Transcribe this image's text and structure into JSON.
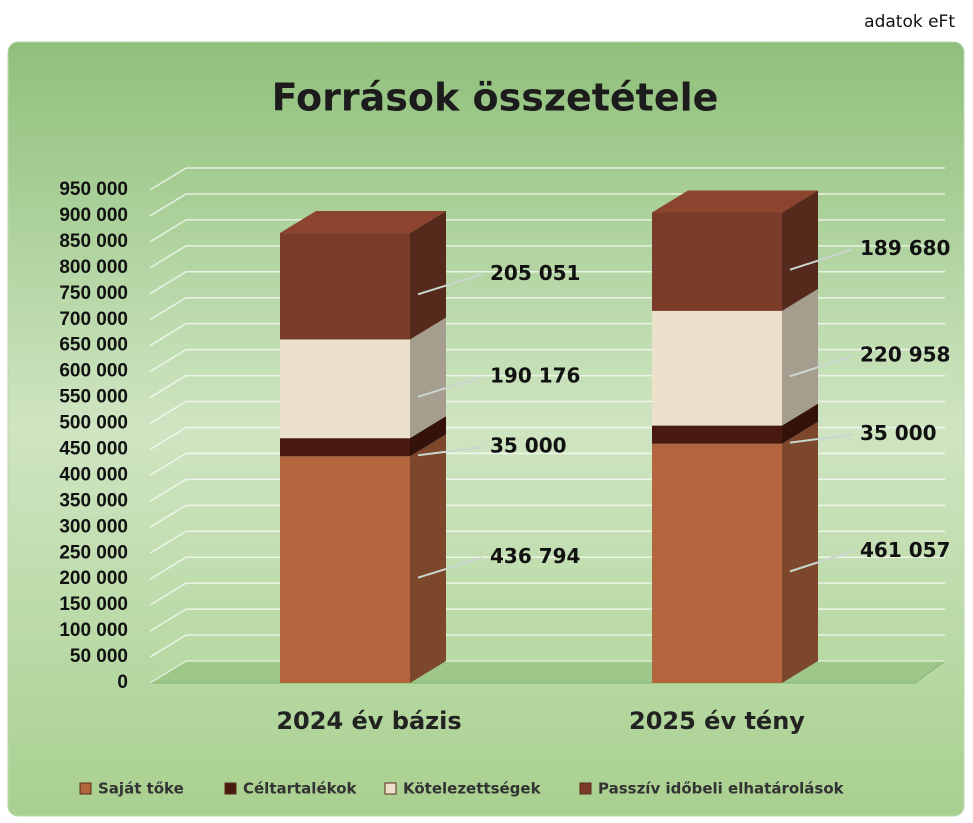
{
  "chart_data": {
    "type": "bar",
    "stacked": true,
    "title": "Források összetétele",
    "annotation": "adatok eFt",
    "categories": [
      "2024 év  bázis",
      "2025 év tény"
    ],
    "series": [
      {
        "name": "Saját tőke",
        "color": "#b3663e",
        "values": [
          436794,
          461057
        ],
        "value_labels": [
          "436 794",
          "461 057"
        ]
      },
      {
        "name": "Céltartalékok",
        "color": "#4a1a10",
        "values": [
          35000,
          35000
        ],
        "value_labels": [
          "35 000",
          "35 000"
        ]
      },
      {
        "name": "Kötelezettségek",
        "color": "#ece2cc",
        "values": [
          190176,
          220958
        ],
        "value_labels": [
          "190 176",
          "220 958"
        ]
      },
      {
        "name": "Passzív időbeli elhatárolások",
        "color": "#7b3b29",
        "values": [
          205051,
          189680
        ],
        "value_labels": [
          "205 051",
          "189 680"
        ]
      }
    ],
    "ylim": [
      0,
      950000
    ],
    "yticks": [
      {
        "value": 0,
        "label": "0"
      },
      {
        "value": 50000,
        "label": "50 000"
      },
      {
        "value": 100000,
        "label": "100 000"
      },
      {
        "value": 150000,
        "label": "150 000"
      },
      {
        "value": 200000,
        "label": "200 000"
      },
      {
        "value": 250000,
        "label": "250 000"
      },
      {
        "value": 300000,
        "label": "300 000"
      },
      {
        "value": 350000,
        "label": "350 000"
      },
      {
        "value": 400000,
        "label": "400 000"
      },
      {
        "value": 450000,
        "label": "450 000"
      },
      {
        "value": 500000,
        "label": "500 000"
      },
      {
        "value": 550000,
        "label": "550 000"
      },
      {
        "value": 600000,
        "label": "600 000"
      },
      {
        "value": 650000,
        "label": "650 000"
      },
      {
        "value": 700000,
        "label": "700 000"
      },
      {
        "value": 750000,
        "label": "750 000"
      },
      {
        "value": 800000,
        "label": "800 000"
      },
      {
        "value": 850000,
        "label": "850 000"
      },
      {
        "value": 900000,
        "label": "900 000"
      },
      {
        "value": 950000,
        "label": "950 000"
      }
    ],
    "grid": true,
    "legend": "bottom"
  }
}
